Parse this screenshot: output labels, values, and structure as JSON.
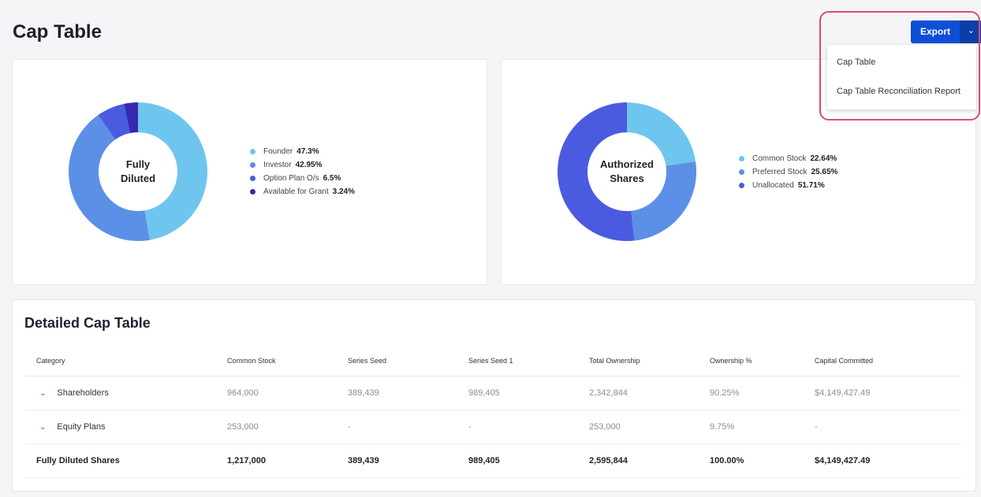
{
  "title": "Cap Table",
  "export": {
    "label": "Export",
    "menu": [
      "Cap Table",
      "Cap Table Reconciliation Report"
    ]
  },
  "charts": [
    {
      "type": "pie",
      "title": "Fully Diluted",
      "title_lines": [
        "Fully",
        "Diluted"
      ],
      "slices": [
        {
          "label": "Founder",
          "pct_text": "47.3%",
          "value": 47.3,
          "color": "#6ec6ee"
        },
        {
          "label": "Investor",
          "pct_text": "42.95%",
          "value": 42.95,
          "color": "#5b90e6"
        },
        {
          "label": "Option Plan O/s",
          "pct_text": "6.5%",
          "value": 6.5,
          "color": "#4a5be0"
        },
        {
          "label": "Available for Grant",
          "pct_text": "3.24%",
          "value": 3.24,
          "color": "#3629b0"
        }
      ]
    },
    {
      "type": "pie",
      "title": "Authorized Shares",
      "title_lines": [
        "Authorized",
        "Shares"
      ],
      "slices": [
        {
          "label": "Common Stock",
          "pct_text": "22.64%",
          "value": 22.64,
          "color": "#6ec6ee"
        },
        {
          "label": "Preferred Stock",
          "pct_text": "25.65%",
          "value": 25.65,
          "color": "#5b90e6"
        },
        {
          "label": "Unallocated",
          "pct_text": "51.71%",
          "value": 51.71,
          "color": "#4a5be0"
        }
      ]
    }
  ],
  "table": {
    "title": "Detailed Cap Table",
    "columns": [
      "Category",
      "Common Stock",
      "Series Seed",
      "Series Seed 1",
      "Total Ownership",
      "Ownership %",
      "Capital Committed"
    ],
    "rows": [
      [
        "Shareholders",
        "964,000",
        "389,439",
        "989,405",
        "2,342,844",
        "90.25%",
        "$4,149,427.49"
      ],
      [
        "Equity Plans",
        "253,000",
        "-",
        "-",
        "253,000",
        "9.75%",
        "-"
      ]
    ],
    "total": [
      "Fully Diluted Shares",
      "1,217,000",
      "389,439",
      "989,405",
      "2,595,844",
      "100.00%",
      "$4,149,427.49"
    ]
  }
}
